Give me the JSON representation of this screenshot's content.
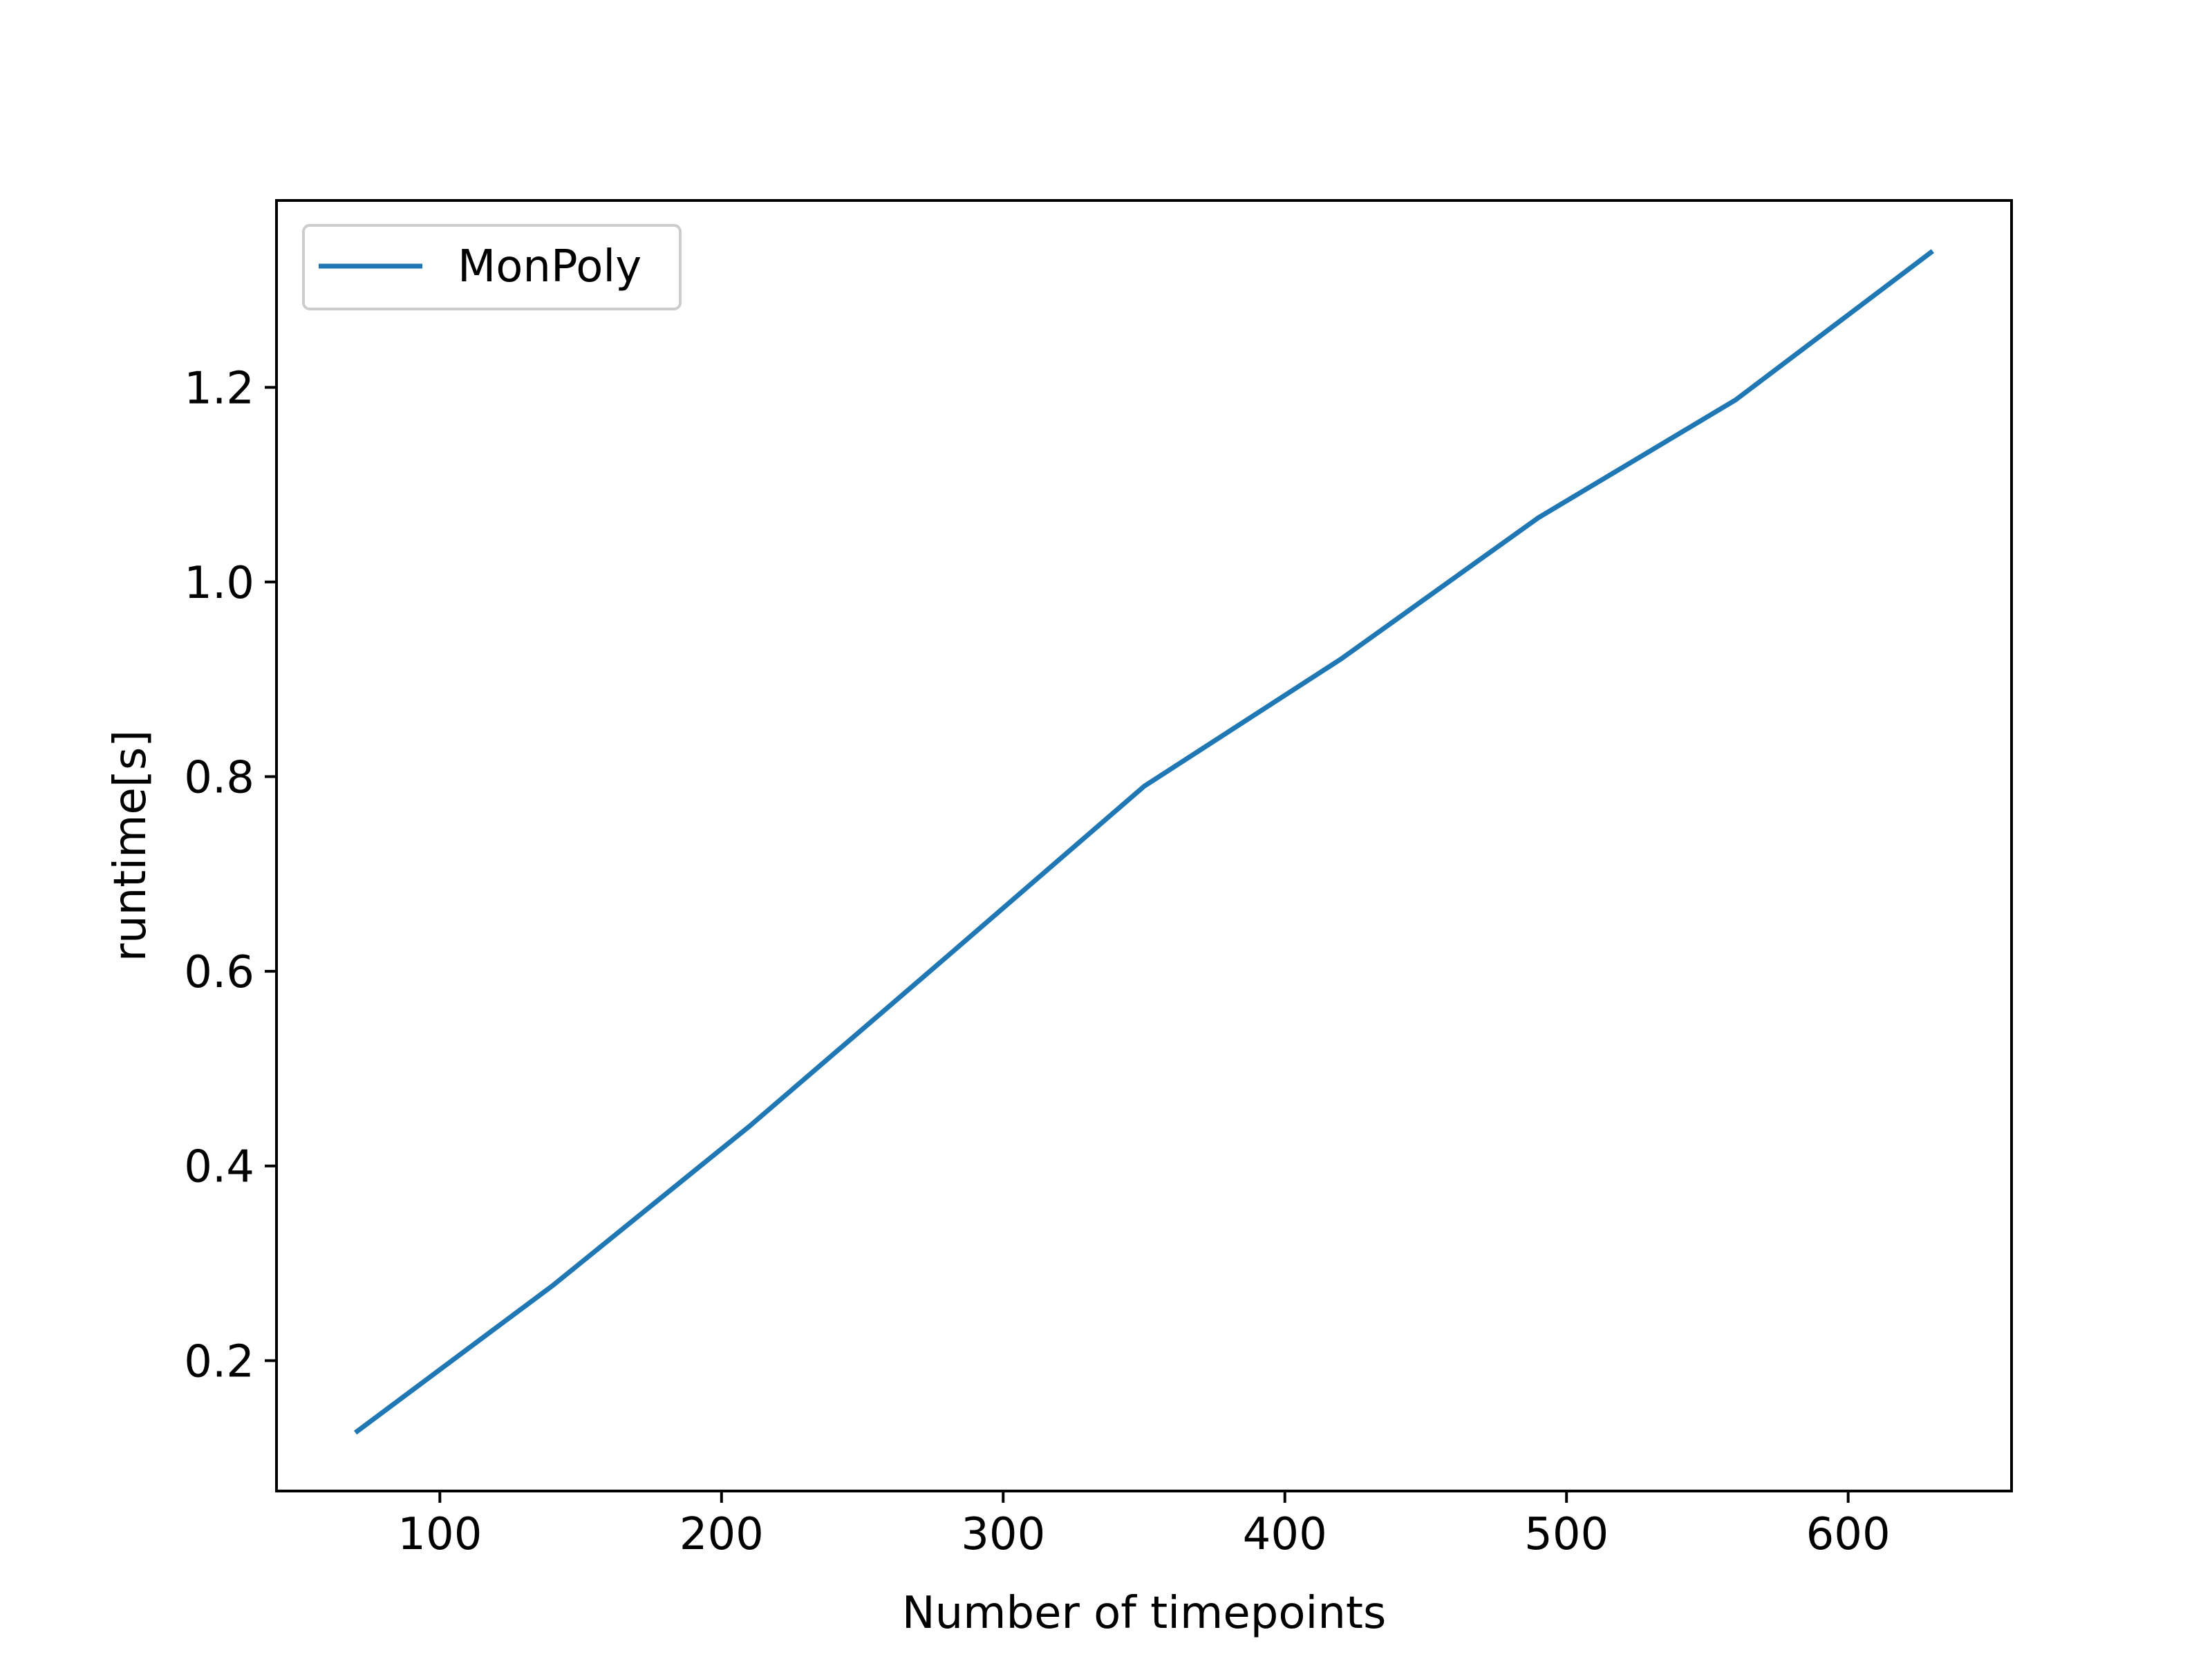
{
  "chart_data": {
    "type": "line",
    "title": "",
    "xlabel": "Number of timepoints",
    "ylabel": "runtime[s]",
    "xlim": [
      42,
      658
    ],
    "ylim": [
      0.066,
      1.392
    ],
    "xticks": [
      100,
      200,
      300,
      400,
      500,
      600
    ],
    "yticks": [
      0.2,
      0.4,
      0.6,
      0.8,
      1.0,
      1.2
    ],
    "xtick_labels": [
      "100",
      "200",
      "300",
      "400",
      "500",
      "600"
    ],
    "ytick_labels": [
      "0.2",
      "0.4",
      "0.6",
      "0.8",
      "1.0",
      "1.2"
    ],
    "grid": false,
    "legend_position": "top-left",
    "series": [
      {
        "name": "MonPoly",
        "color": "#1f77b4",
        "x": [
          70,
          140,
          210,
          280,
          350,
          420,
          490,
          560,
          630
        ],
        "y": [
          0.126,
          0.277,
          0.441,
          0.615,
          0.79,
          0.921,
          1.066,
          1.187,
          1.34
        ]
      }
    ]
  }
}
